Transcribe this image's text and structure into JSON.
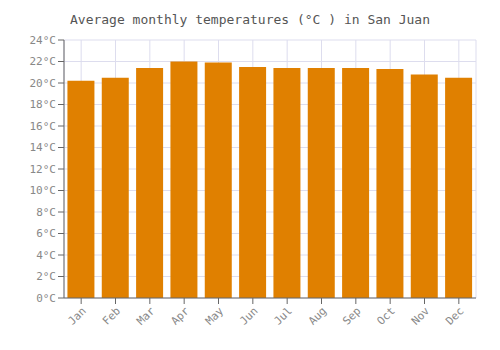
{
  "chart_data": {
    "type": "bar",
    "title": "Average monthly temperatures (°C ) in San Juan",
    "categories": [
      "Jan",
      "Feb",
      "Mar",
      "Apr",
      "May",
      "Jun",
      "Jul",
      "Aug",
      "Sep",
      "Oct",
      "Nov",
      "Dec"
    ],
    "values": [
      20.2,
      20.5,
      21.4,
      22.0,
      21.9,
      21.5,
      21.4,
      21.4,
      21.4,
      21.3,
      20.8,
      20.5
    ],
    "color": "#E08000",
    "ylim": [
      0,
      24
    ],
    "yticks": [
      {
        "value": 0,
        "label": "0°C"
      },
      {
        "value": 2,
        "label": "2°C"
      },
      {
        "value": 4,
        "label": "4°C"
      },
      {
        "value": 6,
        "label": "6°C"
      },
      {
        "value": 8,
        "label": "8°C"
      },
      {
        "value": 10,
        "label": "10°C"
      },
      {
        "value": 12,
        "label": "12°C"
      },
      {
        "value": 14,
        "label": "14°C"
      },
      {
        "value": 16,
        "label": "16°C"
      },
      {
        "value": 18,
        "label": "18°C"
      },
      {
        "value": 20,
        "label": "20°C"
      },
      {
        "value": 22,
        "label": "22°C"
      },
      {
        "value": 24,
        "label": "24°C"
      }
    ],
    "grid": true
  }
}
